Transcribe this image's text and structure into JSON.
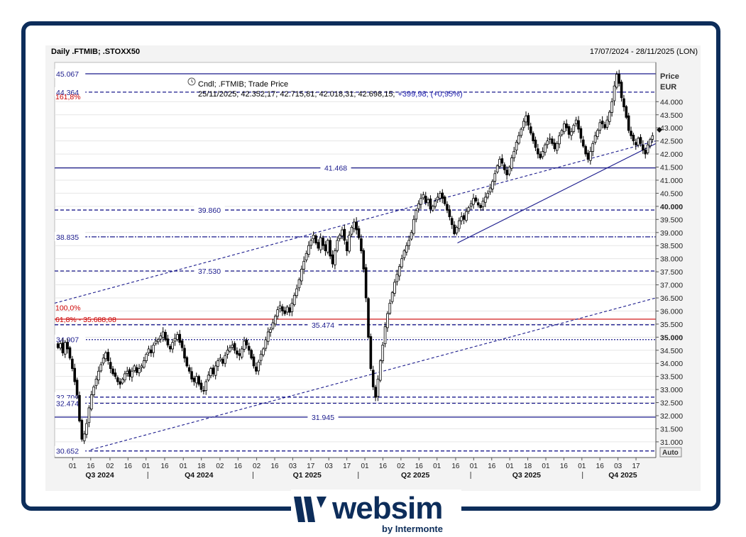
{
  "header": {
    "title": "Daily .FTMIB; .STOXX50",
    "date_range": "17/07/2024 - 28/11/2025 (LON)"
  },
  "legend": {
    "line1": "Cndl; .FTMIB; Trade Price",
    "line2_values": "25/11/2025; 42.352,17; 42.715,81; 42.018,31; 42.698,15;",
    "line2_change": "+399,98; (+0,95%)"
  },
  "axis": {
    "price_title": "Price",
    "currency": "EUR",
    "auto_label": "Auto"
  },
  "logo": {
    "word": "websim",
    "sub": "by Intermonte"
  },
  "colors": {
    "frame": "#0d2d5a",
    "line": "#1a1a8c",
    "fib": "#cc0000",
    "candle": "#000000"
  },
  "chart_data": {
    "type": "candlestick",
    "title": "Daily .FTMIB; .STOXX50",
    "ylim": [
      30400,
      45500
    ],
    "y_ticks": [
      {
        "v": 31000,
        "label": "31.000",
        "bold": false
      },
      {
        "v": 31500,
        "label": "31.500",
        "bold": false
      },
      {
        "v": 32000,
        "label": "32.000",
        "bold": false
      },
      {
        "v": 32500,
        "label": "32.500",
        "bold": false
      },
      {
        "v": 33000,
        "label": "33.000",
        "bold": false
      },
      {
        "v": 33500,
        "label": "33.500",
        "bold": false
      },
      {
        "v": 34000,
        "label": "34.000",
        "bold": false
      },
      {
        "v": 34500,
        "label": "34.500",
        "bold": false
      },
      {
        "v": 35000,
        "label": "35.000",
        "bold": true
      },
      {
        "v": 35500,
        "label": "35.500",
        "bold": false
      },
      {
        "v": 36000,
        "label": "36.000",
        "bold": false
      },
      {
        "v": 36500,
        "label": "36.500",
        "bold": false
      },
      {
        "v": 37000,
        "label": "37.000",
        "bold": false
      },
      {
        "v": 37500,
        "label": "37.500",
        "bold": false
      },
      {
        "v": 38000,
        "label": "38.000",
        "bold": false
      },
      {
        "v": 38500,
        "label": "38.500",
        "bold": false
      },
      {
        "v": 39000,
        "label": "39.000",
        "bold": false
      },
      {
        "v": 39500,
        "label": "39.500",
        "bold": false
      },
      {
        "v": 40000,
        "label": "40.000",
        "bold": true
      },
      {
        "v": 40500,
        "label": "40.500",
        "bold": false
      },
      {
        "v": 41000,
        "label": "41.000",
        "bold": false
      },
      {
        "v": 41500,
        "label": "41.500",
        "bold": false
      },
      {
        "v": 42000,
        "label": "42.000",
        "bold": false
      },
      {
        "v": 42500,
        "label": "42.500",
        "bold": false
      },
      {
        "v": 43000,
        "label": "43.000",
        "bold": false
      },
      {
        "v": 43500,
        "label": "43.500",
        "bold": false
      },
      {
        "v": 44000,
        "label": "44.000",
        "bold": false
      }
    ],
    "horizontal_levels": [
      {
        "v": 45067,
        "label": "45.067",
        "style": "solid",
        "label_pos": "left"
      },
      {
        "v": 44364,
        "label": "44.364",
        "style": "dashed",
        "label_pos": "left"
      },
      {
        "v": 41468,
        "label": "41.468",
        "style": "solid",
        "label_pos": "mid1"
      },
      {
        "v": 39860,
        "label": "39.860",
        "style": "dashed",
        "label_pos": "mid0"
      },
      {
        "v": 38835,
        "label": "38.835",
        "style": "dashdot",
        "label_pos": "left"
      },
      {
        "v": 37530,
        "label": "37.530",
        "style": "dashed",
        "label_pos": "mid0"
      },
      {
        "v": 35474,
        "label": "35.474",
        "style": "dashed",
        "label_pos": "mid2"
      },
      {
        "v": 34907,
        "label": "34.907",
        "style": "dotted",
        "label_pos": "left"
      },
      {
        "v": 32709,
        "label": "32.709",
        "style": "dashed",
        "label_pos": "left"
      },
      {
        "v": 32474,
        "label": "32.474",
        "style": "dashed",
        "label_pos": "left"
      },
      {
        "v": 31945,
        "label": "31.945",
        "style": "solid",
        "label_pos": "mid2"
      },
      {
        "v": 30652,
        "label": "30.652",
        "style": "dashed",
        "label_pos": "left"
      }
    ],
    "fib_levels": [
      {
        "v": 44200,
        "label": "161,8%"
      },
      {
        "v": 36130,
        "label": "100,0%"
      },
      {
        "v": 35688,
        "label": "61,8% - 35.688,08"
      }
    ],
    "trendlines": [
      {
        "x1": 0.0,
        "y1": 36300,
        "x2": 1.0,
        "y2": 42500,
        "style": "dashed"
      },
      {
        "x1": 0.06,
        "y1": 30700,
        "x2": 1.0,
        "y2": 36500,
        "style": "dashed"
      },
      {
        "x1": 0.67,
        "y1": 38600,
        "x2": 1.0,
        "y2": 42400,
        "style": "solid"
      }
    ],
    "x_ticks": [
      {
        "t": 0.03,
        "label": "01"
      },
      {
        "t": 0.06,
        "label": "16"
      },
      {
        "t": 0.092,
        "label": "02"
      },
      {
        "t": 0.122,
        "label": "16"
      },
      {
        "t": 0.152,
        "label": "01"
      },
      {
        "t": 0.183,
        "label": "16"
      },
      {
        "t": 0.214,
        "label": "01"
      },
      {
        "t": 0.244,
        "label": "18"
      },
      {
        "t": 0.275,
        "label": "02"
      },
      {
        "t": 0.305,
        "label": "16"
      },
      {
        "t": 0.336,
        "label": "02"
      },
      {
        "t": 0.366,
        "label": "16"
      },
      {
        "t": 0.396,
        "label": "03"
      },
      {
        "t": 0.426,
        "label": "17"
      },
      {
        "t": 0.456,
        "label": "03"
      },
      {
        "t": 0.486,
        "label": "17"
      },
      {
        "t": 0.516,
        "label": "01"
      },
      {
        "t": 0.546,
        "label": "16"
      },
      {
        "t": 0.576,
        "label": "02"
      },
      {
        "t": 0.606,
        "label": "16"
      },
      {
        "t": 0.636,
        "label": "01"
      },
      {
        "t": 0.667,
        "label": "16"
      },
      {
        "t": 0.697,
        "label": "01"
      },
      {
        "t": 0.727,
        "label": "16"
      },
      {
        "t": 0.757,
        "label": "01"
      },
      {
        "t": 0.787,
        "label": "18"
      },
      {
        "t": 0.817,
        "label": "01"
      },
      {
        "t": 0.847,
        "label": "16"
      },
      {
        "t": 0.877,
        "label": "01"
      },
      {
        "t": 0.907,
        "label": "16"
      },
      {
        "t": 0.937,
        "label": "03"
      },
      {
        "t": 0.967,
        "label": "17"
      }
    ],
    "quarters": [
      {
        "t": 0.075,
        "label": "Q3 2024"
      },
      {
        "t": 0.24,
        "label": "Q4 2024"
      },
      {
        "t": 0.42,
        "label": "Q1 2025"
      },
      {
        "t": 0.6,
        "label": "Q2 2025"
      },
      {
        "t": 0.785,
        "label": "Q3 2025"
      },
      {
        "t": 0.945,
        "label": "Q4 2025"
      }
    ],
    "quarter_separators": [
      0.155,
      0.33,
      0.505,
      0.692,
      0.878
    ],
    "closes": [
      34600,
      34750,
      34400,
      34800,
      34550,
      34200,
      33800,
      33300,
      32800,
      31800,
      31100,
      31300,
      31700,
      32300,
      32800,
      33100,
      33400,
      33700,
      33950,
      34200,
      34400,
      34100,
      33800,
      33600,
      33500,
      33300,
      33200,
      33400,
      33600,
      33700,
      33500,
      33700,
      33900,
      33650,
      33800,
      33900,
      34100,
      34350,
      34550,
      34400,
      34700,
      34850,
      34900,
      35050,
      35200,
      34900,
      34700,
      34550,
      34800,
      34950,
      35100,
      34800,
      34600,
      34200,
      33900,
      33700,
      33400,
      33300,
      33500,
      33200,
      33000,
      32950,
      33300,
      33550,
      33800,
      33600,
      33900,
      34100,
      34200,
      34000,
      34300,
      34500,
      34600,
      34700,
      34500,
      34350,
      34300,
      34550,
      34850,
      34700,
      34500,
      34200,
      33900,
      33700,
      34050,
      34350,
      34550,
      34900,
      35200,
      35300,
      35550,
      35800,
      36050,
      36200,
      36000,
      35900,
      36150,
      35950,
      36300,
      36600,
      36850,
      37200,
      37600,
      37900,
      38200,
      38500,
      38700,
      38900,
      38600,
      38400,
      38800,
      38500,
      38300,
      38700,
      38100,
      37800,
      38300,
      38700,
      38900,
      39100,
      38700,
      38300,
      38900,
      39200,
      39400,
      39100,
      38800,
      38300,
      37600,
      36500,
      35000,
      33800,
      33100,
      32700,
      33400,
      34100,
      34700,
      35400,
      35900,
      36300,
      36700,
      37100,
      37400,
      37700,
      38000,
      38300,
      38500,
      38700,
      39000,
      39500,
      39850,
      40100,
      40300,
      40450,
      40150,
      40250,
      39900,
      40000,
      40200,
      40350,
      40500,
      40300,
      40100,
      39850,
      39600,
      39300,
      38950,
      39200,
      39450,
      39600,
      39500,
      39800,
      39950,
      40100,
      40300,
      40200,
      40050,
      39950,
      40200,
      40350,
      40500,
      40700,
      40950,
      41250,
      41550,
      41800,
      41650,
      41400,
      41200,
      41500,
      41850,
      42100,
      42450,
      42700,
      42950,
      43250,
      43450,
      43100,
      42800,
      42500,
      42250,
      42000,
      41850,
      42100,
      42350,
      42500,
      42600,
      42400,
      42200,
      42400,
      42700,
      42900,
      43150,
      43000,
      42750,
      42850,
      43100,
      43300,
      42950,
      42600,
      42300,
      42000,
      41800,
      42100,
      42400,
      42700,
      42900,
      43200,
      43150,
      43000,
      43300,
      43600,
      44000,
      44600,
      45050,
      44700,
      44150,
      43800,
      43400,
      42900,
      42700,
      42500,
      42350,
      42600,
      42400,
      42150,
      42000,
      42350,
      42550,
      42700
    ]
  }
}
